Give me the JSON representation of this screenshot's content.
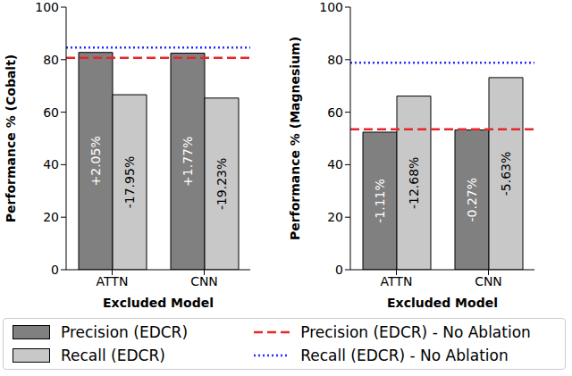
{
  "chart_data": [
    {
      "type": "bar",
      "y_label": "Performance % (Cobalt)",
      "x_label": "Excluded Model",
      "categories": [
        "ATTN",
        "CNN"
      ],
      "ylim": [
        0,
        100
      ],
      "yticks": [
        0,
        20,
        40,
        60,
        80,
        100
      ],
      "grid": false,
      "legend": "bottom",
      "series": [
        {
          "name": "Precision (EDCR)",
          "color": "#808080",
          "values": [
            82.75,
            82.47
          ],
          "annotations": [
            "+2.05%",
            "+1.77%"
          ]
        },
        {
          "name": "Recall (EDCR)",
          "color": "#c8c8c8",
          "values": [
            66.65,
            65.37
          ],
          "annotations": [
            "-17.95%",
            "-19.23%"
          ]
        }
      ],
      "reference_lines": [
        {
          "name": "Precision (EDCR) - No Ablation",
          "value": 80.7,
          "color": "#e8262a",
          "line_style": "dashed"
        },
        {
          "name": "Recall (EDCR) - No Ablation",
          "value": 84.6,
          "color": "#2a2aff",
          "line_style": "dotted"
        }
      ]
    },
    {
      "type": "bar",
      "y_label": "Performance % (Magnesium)",
      "x_label": "Excluded Model",
      "categories": [
        "ATTN",
        "CNN"
      ],
      "ylim": [
        0,
        100
      ],
      "yticks": [
        0,
        20,
        40,
        60,
        80,
        100
      ],
      "grid": false,
      "legend": "bottom",
      "series": [
        {
          "name": "Precision (EDCR)",
          "color": "#808080",
          "values": [
            52.39,
            53.23
          ],
          "annotations": [
            "-1.11%",
            "-0.27%"
          ]
        },
        {
          "name": "Recall (EDCR)",
          "color": "#c8c8c8",
          "values": [
            66.12,
            73.17
          ],
          "annotations": [
            "-12.68%",
            "-5.63%"
          ]
        }
      ],
      "reference_lines": [
        {
          "name": "Precision (EDCR) - No Ablation",
          "value": 53.5,
          "color": "#e8262a",
          "line_style": "dashed"
        },
        {
          "name": "Recall (EDCR) - No Ablation",
          "value": 78.8,
          "color": "#2a2aff",
          "line_style": "dotted"
        }
      ]
    }
  ]
}
